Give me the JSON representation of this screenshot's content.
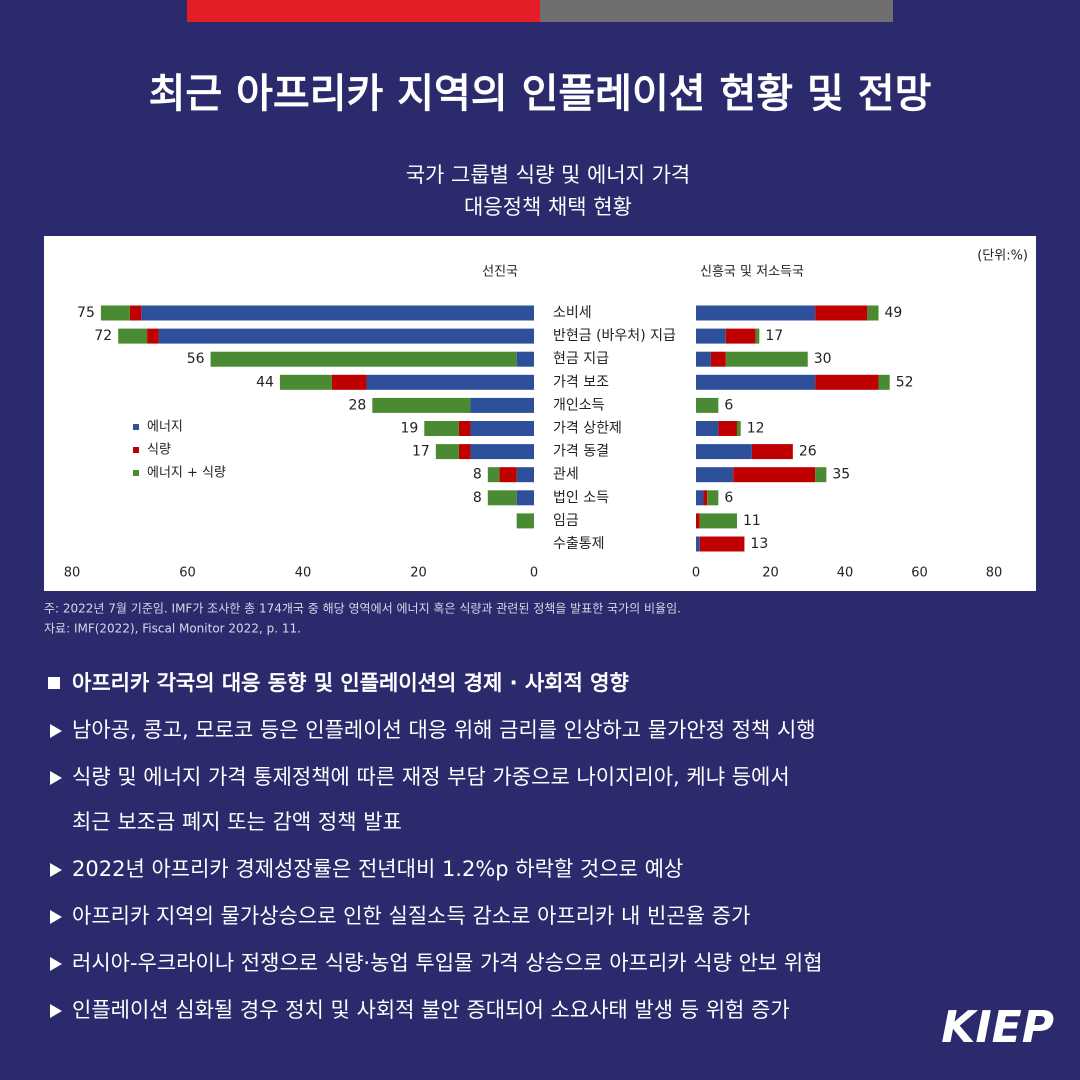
{
  "header": {
    "title": "최근 아프리카 지역의 인플레이션 현황 및 전망"
  },
  "chart_data": {
    "type": "bar",
    "orientation": "horizontal",
    "stacked": true,
    "title": [
      "국가 그룹별 식량 및 에너지 가격",
      "대응정책 채택 현황"
    ],
    "unit": "(단위:%)",
    "categories": [
      "소비세",
      "반현금 (바우처) 지급",
      "현금 지급",
      "가격 보조",
      "개인소득",
      "가격 상한제",
      "가격 동결",
      "관세",
      "법인 소득",
      "임금",
      "수출통제"
    ],
    "legend": [
      {
        "name": "에너지",
        "color": "#2e4f9a"
      },
      {
        "name": "식량",
        "color": "#c00000"
      },
      {
        "name": "에너지 + 식량",
        "color": "#4a8a32"
      }
    ],
    "panels": [
      {
        "title": "선진국",
        "xlim": [
          80,
          0
        ],
        "xticks": [
          80,
          60,
          40,
          20,
          0
        ],
        "series": [
          {
            "values": [
              68,
              65,
              3,
              29,
              11,
              11,
              11,
              3,
              3,
              0,
              0
            ]
          },
          {
            "values": [
              2,
              2,
              0,
              6,
              0,
              2,
              2,
              3,
              0,
              0,
              0
            ]
          },
          {
            "values": [
              5,
              5,
              53,
              9,
              17,
              6,
              4,
              2,
              5,
              3,
              0
            ]
          }
        ],
        "totals": [
          75,
          72,
          56,
          44,
          28,
          19,
          17,
          8,
          8,
          null,
          null
        ]
      },
      {
        "title": "신흥국 및 저소득국",
        "xlim": [
          0,
          80
        ],
        "xticks": [
          0,
          20,
          40,
          60,
          80
        ],
        "series": [
          {
            "values": [
              32,
              8,
              4,
              32,
              0,
              6,
              15,
              10,
              2,
              0,
              1
            ]
          },
          {
            "values": [
              14,
              8,
              4,
              17,
              0,
              5,
              11,
              22,
              1,
              1,
              12
            ]
          },
          {
            "values": [
              3,
              1,
              22,
              3,
              6,
              1,
              0,
              3,
              3,
              10,
              0
            ]
          }
        ],
        "totals": [
          49,
          17,
          30,
          52,
          6,
          12,
          26,
          35,
          6,
          11,
          13
        ]
      }
    ]
  },
  "notes": [
    "주: 2022년 7월 기준임. IMF가 조사한 총 174개국 중 해당 영역에서 에너지 혹은 식량과 관련된 정책을 발표한 국가의 비율임.",
    "자료: IMF(2022), Fiscal Monitor 2022, p. 11."
  ],
  "section": {
    "heading": "아프리카 각국의 대응 동향 및 인플레이션의 경제 · 사회적 영향",
    "items": [
      [
        "남아공, 콩고, 모로코 등은 인플레이션 대응 위해 금리를 인상하고 물가안정 정책 시행"
      ],
      [
        "식량 및 에너지 가격 통제정책에 따른 재정 부담 가중으로 나이지리아, 케냐 등에서",
        "최근 보조금 폐지 또는 감액 정책 발표"
      ],
      [
        "2022년 아프리카 경제성장률은 전년대비 1.2%p 하락할 것으로 예상"
      ],
      [
        "아프리카 지역의 물가상승으로 인한 실질소득 감소로 아프리카 내 빈곤율 증가"
      ],
      [
        "러시아-우크라이나 전쟁으로 식량·농업 투입물 가격 상승으로 아프리카 식량 안보 위협"
      ],
      [
        "인플레이션 심화될 경우 정치 및 사회적 불안 증대되어 소요사태 발생 등 위험 증가"
      ]
    ]
  },
  "logo": "KIEP"
}
